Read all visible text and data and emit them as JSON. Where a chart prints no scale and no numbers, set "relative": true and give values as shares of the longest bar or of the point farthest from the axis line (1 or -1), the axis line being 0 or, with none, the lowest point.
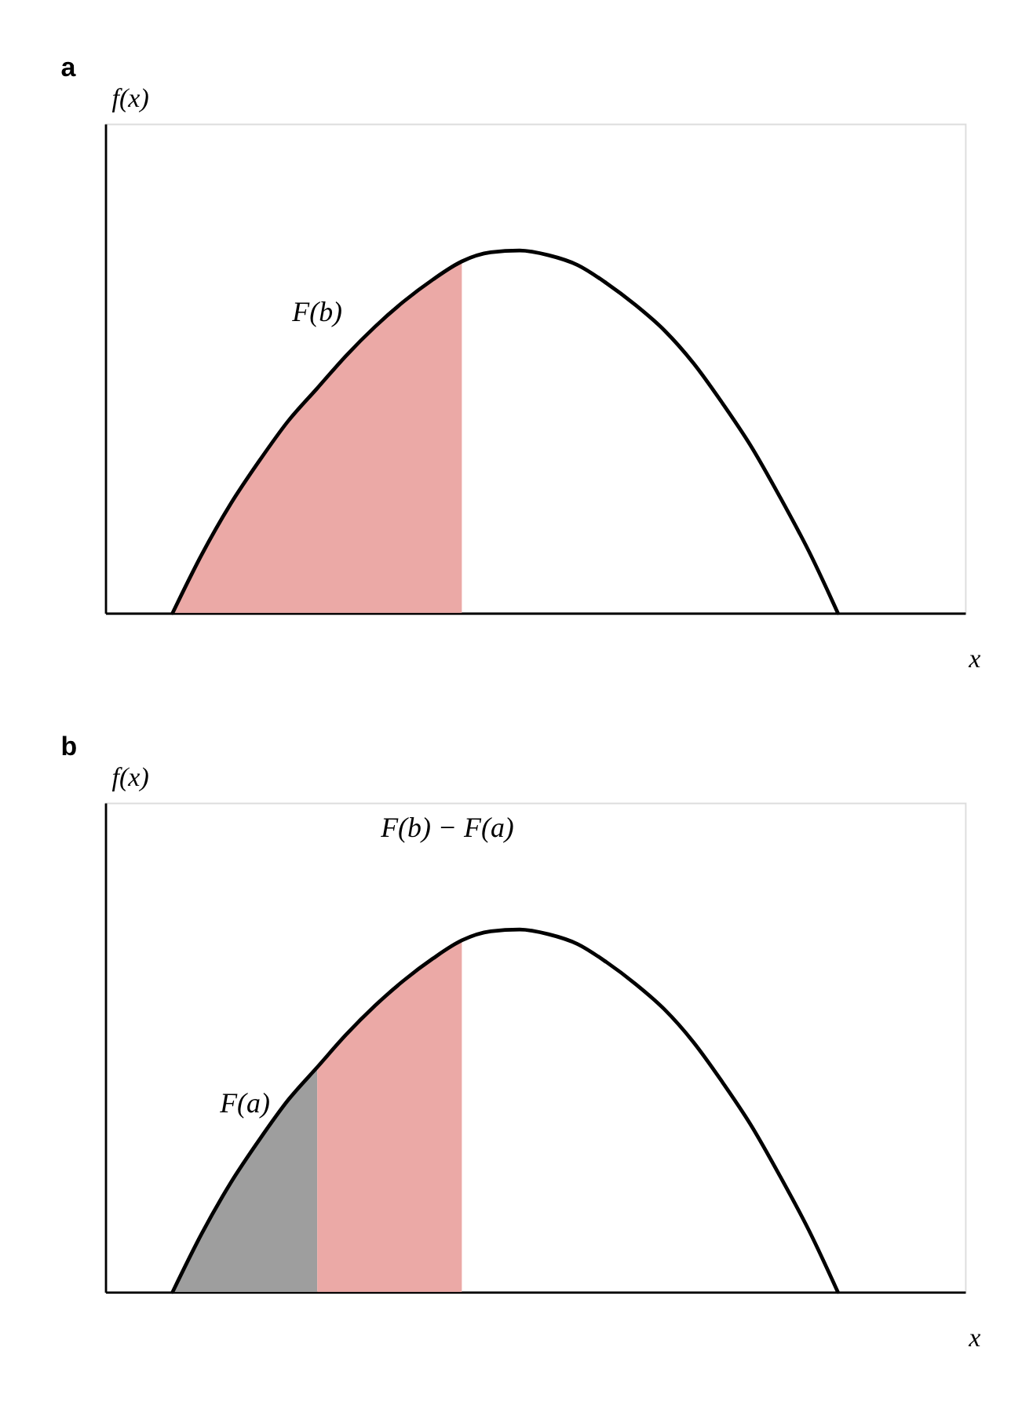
{
  "chart_data": [
    {
      "type": "line",
      "title": "a",
      "xlabel": "x",
      "ylabel": "f(x)",
      "relative": true,
      "tick_labels": false,
      "grid": false,
      "categories": [
        null,
        null,
        null,
        null,
        null,
        null,
        null,
        null,
        null,
        null,
        null,
        null,
        null,
        null,
        null,
        null,
        null,
        null,
        null,
        null,
        null,
        null,
        null,
        null
      ],
      "series": [
        {
          "type": "area",
          "color": "#eba9a6",
          "values": [
            0,
            0.16,
            0.3,
            0.42,
            0.53,
            0.62,
            0.71,
            0.79,
            0.86,
            0.92,
            0.97,
            null,
            null,
            null,
            null,
            null,
            null,
            null,
            null,
            null,
            null,
            null,
            null,
            null
          ]
        },
        {
          "color": "#000000",
          "values": [
            0,
            0.16,
            0.3,
            0.42,
            0.53,
            0.62,
            0.71,
            0.79,
            0.86,
            0.92,
            0.97,
            0.995,
            1.0,
            0.987,
            0.96,
            0.91,
            0.85,
            0.78,
            0.69,
            0.58,
            0.46,
            0.32,
            0.17,
            0
          ]
        }
      ],
      "annotations": [
        "F(b)"
      ]
    },
    {
      "type": "line",
      "title": "b",
      "xlabel": "x",
      "ylabel": "f(x)",
      "relative": true,
      "tick_labels": false,
      "grid": false,
      "categories": [
        null,
        null,
        null,
        null,
        null,
        null,
        null,
        null,
        null,
        null,
        null,
        null,
        null,
        null,
        null,
        null,
        null,
        null,
        null,
        null,
        null,
        null,
        null,
        null
      ],
      "series": [
        {
          "type": "area",
          "color": "#9e9e9e",
          "values": [
            0,
            0.16,
            0.3,
            0.42,
            0.53,
            0.62,
            null,
            null,
            null,
            null,
            null,
            null,
            null,
            null,
            null,
            null,
            null,
            null,
            null,
            null,
            null,
            null,
            null,
            null
          ]
        },
        {
          "type": "area",
          "color": "#eba9a6",
          "values": [
            null,
            null,
            null,
            null,
            null,
            0.62,
            0.71,
            0.79,
            0.86,
            0.92,
            0.97,
            null,
            null,
            null,
            null,
            null,
            null,
            null,
            null,
            null,
            null,
            null,
            null,
            null
          ]
        },
        {
          "color": "#000000",
          "values": [
            0,
            0.16,
            0.3,
            0.42,
            0.53,
            0.62,
            0.71,
            0.79,
            0.86,
            0.92,
            0.97,
            0.995,
            1.0,
            0.987,
            0.96,
            0.91,
            0.85,
            0.78,
            0.69,
            0.58,
            0.46,
            0.32,
            0.17,
            0
          ]
        }
      ],
      "annotations": [
        "F(b) − F(a)",
        "F(a)"
      ]
    }
  ]
}
